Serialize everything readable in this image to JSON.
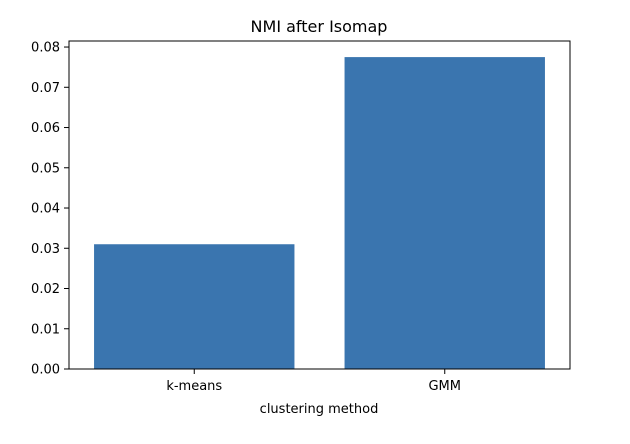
{
  "chart_data": {
    "type": "bar",
    "title": "NMI after Isomap",
    "xlabel": "clustering method",
    "ylabel": "",
    "categories": [
      "k-means",
      "GMM"
    ],
    "values": [
      0.031,
      0.0775
    ],
    "ylim": [
      0,
      0.0815
    ],
    "yticks": [
      0.0,
      0.01,
      0.02,
      0.03,
      0.04,
      0.05,
      0.06,
      0.07,
      0.08
    ],
    "ytick_labels": [
      "0.00",
      "0.01",
      "0.02",
      "0.03",
      "0.04",
      "0.05",
      "0.06",
      "0.07",
      "0.08"
    ],
    "grid": false,
    "legend": "none",
    "bar_color": "#3a75af"
  }
}
